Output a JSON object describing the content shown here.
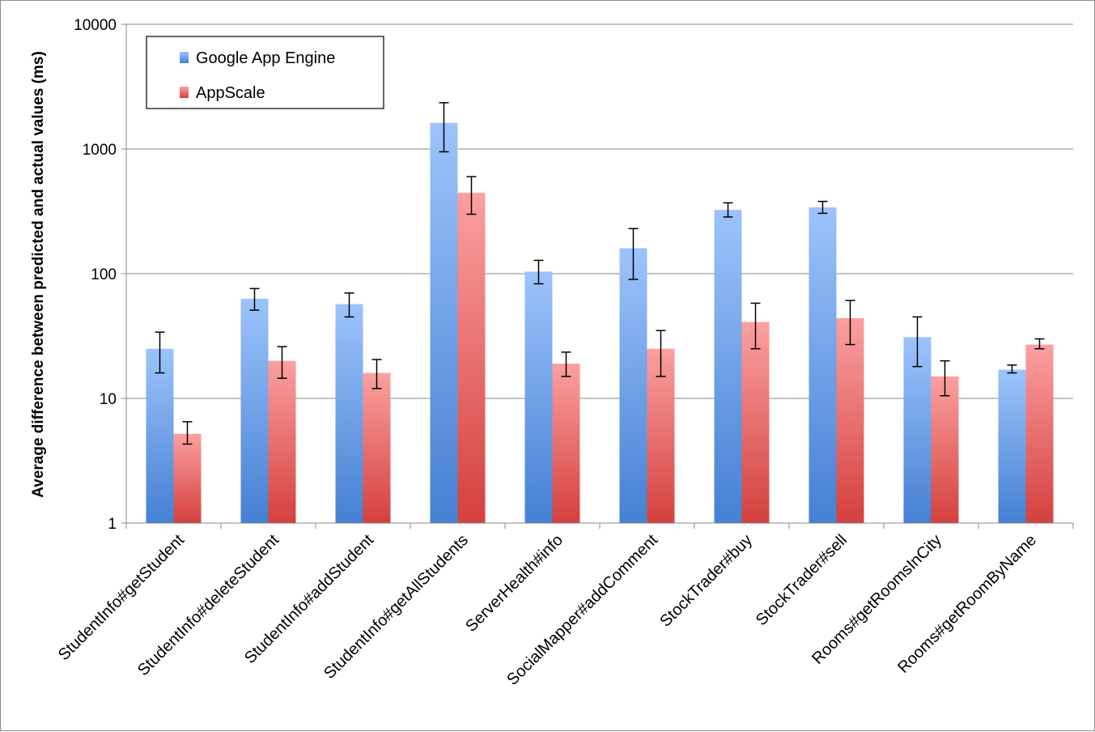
{
  "chart_data": {
    "type": "bar",
    "title": "",
    "ylabel": "Average difference between predicted and actual values (ms)",
    "xlabel": "",
    "yscale": "log",
    "ylim": [
      1,
      10000
    ],
    "yticks": [
      "1",
      "10",
      "100",
      "1000",
      "10000"
    ],
    "grid": true,
    "legend_position": "top-left",
    "categories": [
      "StudentInfo#getStudent",
      "StudentInfo#deleteStudent",
      "StudentInfo#addStudent",
      "StudentInfo#getAllStudents",
      "ServerHealth#info",
      "SocialMapper#addComment",
      "StockTrader#buy",
      "StockTrader#sell",
      "Rooms#getRoomsInCity",
      "Rooms#getRoomByName"
    ],
    "series": [
      {
        "name": "Google App Engine",
        "color": "#4a86d8",
        "values": [
          25,
          63,
          57,
          1620,
          104,
          160,
          325,
          340,
          31,
          17
        ],
        "error_low": [
          16,
          51,
          45,
          950,
          83,
          90,
          285,
          305,
          18,
          16
        ],
        "error_high": [
          34,
          76,
          70,
          2350,
          128,
          230,
          370,
          380,
          45,
          18.5
        ]
      },
      {
        "name": "AppScale",
        "color": "#d84a4a",
        "values": [
          5.2,
          20,
          16,
          445,
          19,
          25,
          41,
          44,
          15,
          27
        ],
        "error_low": [
          4.3,
          14.5,
          12,
          300,
          15,
          15,
          25,
          27,
          10.5,
          25
        ],
        "error_high": [
          6.5,
          26,
          20.5,
          600,
          23.5,
          35,
          58,
          61,
          20,
          30
        ]
      }
    ]
  }
}
